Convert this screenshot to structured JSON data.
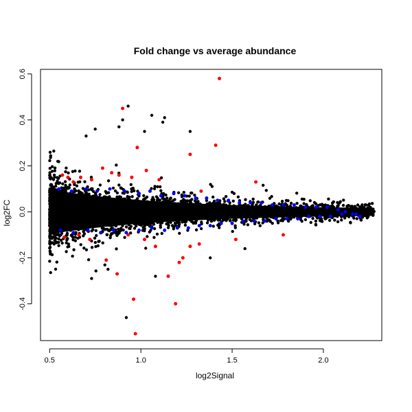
{
  "chart_data": {
    "type": "scatter",
    "title": "Fold change vs average abundance",
    "xlabel": "log2Signal",
    "ylabel": "log2FC",
    "xlim": [
      0.45,
      2.32
    ],
    "ylim": [
      -0.56,
      0.62
    ],
    "xticks": [
      0.5,
      1.0,
      1.5,
      2.0
    ],
    "xtick_labels": [
      "0.5",
      "1.0",
      "1.5",
      "2.0"
    ],
    "yticks": [
      -0.4,
      -0.2,
      0.0,
      0.2,
      0.4,
      0.6
    ],
    "ytick_labels": [
      "-0.4",
      "-0.2",
      "0.0",
      "0.2",
      "0.4",
      "0.6"
    ],
    "grid": false,
    "legend": "none",
    "colors": {
      "background": "#ffffff",
      "frame": "#000000",
      "all_points": "#000000",
      "blue_points": "#0000ff",
      "red_points": "#ff0000"
    },
    "series": [
      {
        "color": "#ff0000",
        "points": [
          [
            1.43,
            0.58
          ],
          [
            0.9,
            0.45
          ],
          [
            1.41,
            0.29
          ],
          [
            0.98,
            0.28
          ],
          [
            0.57,
            0.16
          ],
          [
            0.6,
            0.15
          ],
          [
            0.63,
            0.13
          ],
          [
            0.67,
            0.15
          ],
          [
            0.73,
            0.14
          ],
          [
            0.79,
            0.19
          ],
          [
            0.84,
            0.17
          ],
          [
            0.88,
            0.16
          ],
          [
            1.27,
            0.25
          ],
          [
            1.63,
            0.13
          ],
          [
            1.03,
            0.18
          ],
          [
            1.1,
            0.14
          ],
          [
            0.58,
            -0.11
          ],
          [
            0.66,
            -0.1
          ],
          [
            0.72,
            -0.12
          ],
          [
            0.81,
            -0.21
          ],
          [
            0.87,
            -0.27
          ],
          [
            0.93,
            -0.1
          ],
          [
            0.96,
            -0.38
          ],
          [
            0.97,
            -0.53
          ],
          [
            1.02,
            -0.12
          ],
          [
            1.08,
            -0.15
          ],
          [
            1.15,
            -0.28
          ],
          [
            1.19,
            -0.4
          ],
          [
            1.21,
            -0.22
          ],
          [
            1.23,
            -0.2
          ],
          [
            1.27,
            -0.15
          ],
          [
            1.32,
            -0.14
          ],
          [
            1.78,
            -0.1
          ],
          [
            1.52,
            -0.12
          ],
          [
            0.95,
            0.15
          ],
          [
            1.33,
            0.09
          ]
        ]
      },
      {
        "color": "#0000ff",
        "points": [
          [
            0.55,
            0.1
          ],
          [
            0.62,
            0.09
          ],
          [
            0.7,
            0.1
          ],
          [
            0.76,
            0.09
          ],
          [
            0.83,
            0.1
          ],
          [
            0.91,
            0.09
          ],
          [
            0.99,
            0.08
          ],
          [
            1.05,
            0.09
          ],
          [
            1.11,
            0.07
          ],
          [
            1.18,
            0.08
          ],
          [
            1.24,
            0.07
          ],
          [
            1.3,
            0.06
          ],
          [
            1.36,
            0.06
          ],
          [
            1.42,
            0.05
          ],
          [
            1.48,
            0.05
          ],
          [
            1.54,
            0.04
          ],
          [
            1.6,
            0.04
          ],
          [
            1.66,
            0.04
          ],
          [
            1.72,
            0.03
          ],
          [
            1.78,
            0.03
          ],
          [
            1.84,
            0.03
          ],
          [
            1.9,
            0.02
          ],
          [
            1.96,
            0.02
          ],
          [
            2.02,
            0.02
          ],
          [
            2.08,
            0.01
          ],
          [
            2.12,
            0.0
          ],
          [
            2.18,
            -0.01
          ],
          [
            0.56,
            -0.08
          ],
          [
            0.63,
            -0.09
          ],
          [
            0.71,
            -0.08
          ],
          [
            0.78,
            -0.09
          ],
          [
            0.85,
            -0.08
          ],
          [
            0.92,
            -0.09
          ],
          [
            0.99,
            -0.08
          ],
          [
            1.06,
            -0.07
          ],
          [
            1.13,
            -0.08
          ],
          [
            1.2,
            -0.07
          ],
          [
            1.26,
            -0.07
          ],
          [
            1.32,
            -0.06
          ],
          [
            1.38,
            -0.06
          ],
          [
            1.44,
            -0.05
          ],
          [
            1.5,
            -0.05
          ],
          [
            1.56,
            -0.04
          ],
          [
            1.62,
            -0.04
          ],
          [
            1.68,
            -0.04
          ],
          [
            1.74,
            -0.03
          ],
          [
            1.8,
            -0.03
          ],
          [
            1.86,
            -0.03
          ],
          [
            1.92,
            -0.02
          ],
          [
            1.98,
            -0.02
          ],
          [
            2.04,
            -0.02
          ],
          [
            2.1,
            -0.01
          ],
          [
            2.16,
            -0.01
          ],
          [
            2.2,
            -0.02
          ]
        ]
      }
    ]
  }
}
